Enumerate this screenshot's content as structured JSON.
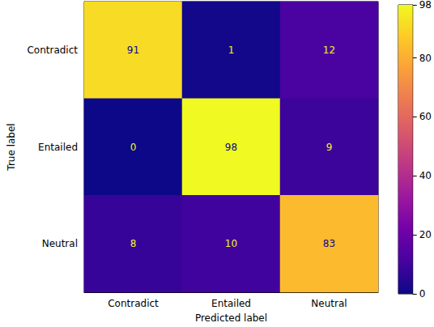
{
  "chart_data": {
    "type": "heatmap",
    "x_categories": [
      "Contradict",
      "Entailed",
      "Neutral"
    ],
    "y_categories": [
      "Contradict",
      "Entailed",
      "Neutral"
    ],
    "cells": [
      [
        91,
        1,
        12
      ],
      [
        0,
        98,
        9
      ],
      [
        8,
        10,
        83
      ]
    ],
    "xlabel": "Predicted label",
    "ylabel": "True label",
    "colorbar_range": [
      0,
      98
    ],
    "colorbar_ticks": [
      0,
      20,
      40,
      60,
      80
    ],
    "data_labels": true
  }
}
